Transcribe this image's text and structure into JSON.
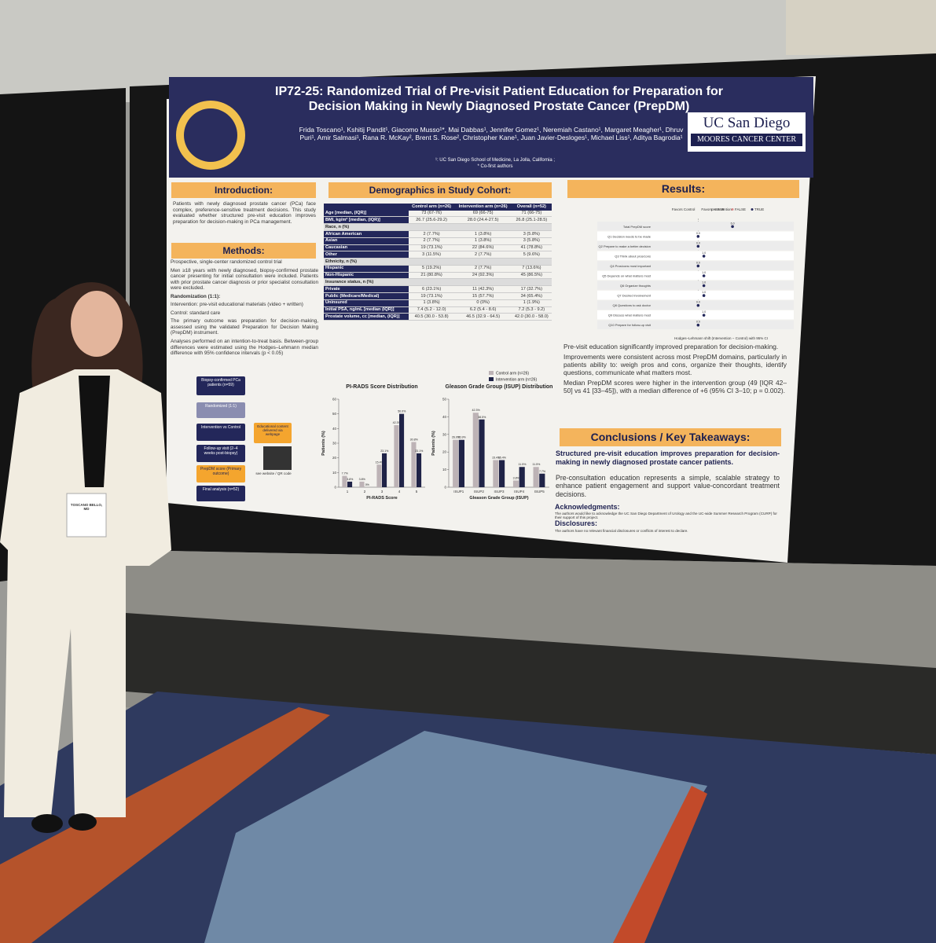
{
  "poster": {
    "title": "IP72-25: Randomized Trial of Pre-visit Patient Education for Preparation for Decision Making in Newly Diagnosed Prostate Cancer (PrepDM)",
    "authors": "Frida Toscano¹, Kshitij Pandit¹, Giacomo Musso¹*, Mai Dabbas¹, Jennifer Gomez¹, Neremiah Castano¹, Margaret Meagher¹, Dhruv Puri¹, Amir Salmasi¹, Rana R. McKay², Brent S. Rose², Christopher Kane¹, Juan Javier-Desloges¹, Michael Liss¹, Aditya Bagrodia¹",
    "affiliation": "¹: UC San Diego School of Medicine, La Jolla, California ;",
    "co_first": "* Co-first authors",
    "logo": {
      "name": "UC San Diego",
      "unit": "MOORES CANCER CENTER"
    },
    "introduction": {
      "heading": "Introduction:",
      "text": "Patients with newly diagnosed prostate cancer (PCa) face complex, preference-sensitive treatment decisions. This study evaluated whether structured pre-visit education improves preparation for decision-making in PCa management."
    },
    "methods": {
      "heading": "Methods:",
      "design": "Prospective, single-center randomized control trial",
      "eligibility": "Men ≥18 years with newly diagnosed, biopsy-confirmed prostate cancer presenting for initial consultation were included. Patients with prior prostate cancer diagnosis or prior specialist consultation were excluded.",
      "randomization": "Randomization (1:1):",
      "arms": [
        "Intervention: pre-visit educational materials (video + written)",
        "Control: standard care"
      ],
      "outcome": "The primary outcome was preparation for decision-making, assessed using the validated Preparation for Decision Making (PrepDM) instrument.",
      "analysis": "Analyses performed on an intention-to-treat basis. Between-group differences were estimated using the Hodges–Lehmann median difference with 95% confidence intervals (p < 0.05)"
    },
    "flow": {
      "steps": [
        "Biopsy-confirmed PCa patients (n=59)",
        "Randomized (1:1)",
        "Intervention vs Control",
        "Follow-up visit (2–4 weeks post-biopsy)",
        "PrepDM score (Primary outcome)",
        "Final analysis (n=52)"
      ],
      "qr_caption": "Educational content delivered via webpage",
      "qr_link": "see website / QR code"
    },
    "demographics": {
      "heading": "Demographics in Study Cohort:",
      "columns": [
        "Control arm (n=26)",
        "Intervention arm (n=26)",
        "Overall (n=52)"
      ],
      "rows": [
        [
          "Age [median, (IQR)]",
          "73 (67-76)",
          "69 (66-75)",
          "71 (66-75)"
        ],
        [
          "BMI, kg/m² [median, (IQR)]",
          "26.7 (25.6-29.2)",
          "28.0 (24.4-27.5)",
          "26.8 (25.1-28.5)"
        ],
        [
          "Race, n (%)"
        ],
        [
          "African American",
          "2 (7.7%)",
          "1 (3.8%)",
          "3 (5.8%)"
        ],
        [
          "Asian",
          "2 (7.7%)",
          "1 (3.8%)",
          "3 (5.8%)"
        ],
        [
          "Caucasian",
          "19 (73.1%)",
          "22 (84.6%)",
          "41 (78.8%)"
        ],
        [
          "Other",
          "3 (11.5%)",
          "2 (7.7%)",
          "5 (9.6%)"
        ],
        [
          "Ethnicity, n (%)"
        ],
        [
          "Hispanic",
          "5 (19.2%)",
          "2 (7.7%)",
          "7 (13.6%)"
        ],
        [
          "Non-Hispanic",
          "21 (80.8%)",
          "24 (92.3%)",
          "45 (86.5%)"
        ],
        [
          "Insurance status, n (%)"
        ],
        [
          "Private",
          "6 (23.1%)",
          "11 (42.3%)",
          "17 (32.7%)"
        ],
        [
          "Public (Medicare/Medical)",
          "19 (73.1%)",
          "15 (57.7%)",
          "34 (65.4%)"
        ],
        [
          "Uninsured",
          "1 (3.8%)",
          "0 (0%)",
          "1 (1.9%)"
        ],
        [
          "Initial PSA, ng/mL [median (IQR)]",
          "7.4 (5.2 - 12.0)",
          "6.2 (5.4 - 8.6)",
          "7.2 (5.3 - 9.2)"
        ],
        [
          "Prostate volume, cc [median, (IQR)]",
          "40.5 (30.0 - 53.8)",
          "46.5 (32.9 - 64.5)",
          "42.0 (30.0 - 58.0)"
        ]
      ]
    },
    "results": {
      "heading": "Results:",
      "text": [
        "Pre-visit education significantly improved preparation for decision-making.",
        "Improvements were consistent across most PrepDM domains, particularly in patients ability to: weigh pros and cons, organize their thoughts, identify questions, communicate what matters most.",
        "Median PrepDM scores were higher in the intervention group (49 [IQR 42–50] vs 41 [33–45]), with a median difference of +6 (95% CI 3–10; p = 0.002)."
      ]
    },
    "conclusions": {
      "heading": "Conclusions / Key Takeaways:",
      "main": "Structured pre-visit education improves preparation for decision-making in newly diagnosed prostate cancer patients.",
      "text": "Pre-consultation education represents a simple, scalable strategy to enhance patient engagement and support value-concordant treatment decisions."
    },
    "acknowledgments": {
      "heading": "Acknowledgments:",
      "text": "The authors would like to acknowledge the UC San Diego Department of Urology and the UC-wide Summer Research Program (CURP) for their support of this project."
    },
    "disclosures": {
      "heading": "Disclosures:",
      "text": "The authors have no relevant financial disclosures or conflicts of interest to declare."
    },
    "badge": "TOSCANO BELLO, MD"
  },
  "chart_data": [
    {
      "type": "bar",
      "title": "PI-RADS Score Distribution",
      "x_label": "PI-RADS Score",
      "y_label": "Patients (%)",
      "categories": [
        "1",
        "2",
        "3",
        "4",
        "5"
      ],
      "series": [
        {
          "name": "Control arm (n=26)",
          "color": "#bdb3b6",
          "values": [
            7.7,
            3.8,
            15.4,
            42.3,
            30.8
          ],
          "value_labels": [
            "7.7%",
            "3.8%",
            "15.4%",
            "42.3%",
            "30.8%"
          ]
        },
        {
          "name": "Intervention arm (n=26)",
          "color": "#1f2347",
          "values": [
            3.8,
            0,
            23.1,
            50.0,
            23.1
          ],
          "value_labels": [
            "3.8%",
            "0%",
            "23.1%",
            "50.0%",
            "23.1%"
          ]
        }
      ],
      "ylim": [
        0,
        60
      ],
      "yticks": [
        0,
        10,
        20,
        30,
        40,
        50,
        60
      ]
    },
    {
      "type": "bar",
      "title": "Gleason Grade Group (ISUP) Distribution",
      "x_label": "Gleason Grade Group (ISUP)",
      "y_label": "Patients (%)",
      "categories": [
        "ISUP1",
        "ISUP2",
        "ISUP3",
        "ISUP4",
        "ISUP5"
      ],
      "series": [
        {
          "color": "#bdb3b6",
          "values": [
            26.9,
            42.3,
            15.4,
            3.8,
            11.5
          ],
          "value_labels": [
            "26.9%",
            "42.3%",
            "15.4%",
            "3.8%",
            "11.5%"
          ]
        },
        {
          "color": "#1f2347",
          "values": [
            26.9,
            38.5,
            15.4,
            11.5,
            7.7
          ],
          "value_labels": [
            "26.9%",
            "38.5%",
            "15.4%",
            "11.5%",
            "7.7%"
          ]
        }
      ],
      "ylim": [
        0,
        50
      ],
      "yticks": [
        0,
        10,
        20,
        30,
        40,
        50
      ]
    },
    {
      "type": "forest",
      "left_label": "Favors Control",
      "right_label": "Favors Intervention",
      "legend_title": "p < 0.05",
      "legend": [
        "FALSE",
        "TRUE"
      ],
      "x_label": "Hodges–Lehmann shift (Intervention − Control) with 95% CI",
      "categories": [
        "Total PrepDM score",
        "Q1 Decision needs to be made",
        "Q2 Prepare to make a better decision",
        "Q3 Think about pros/cons",
        "Q4 Pros/cons most important",
        "Q5 Depends on what matters most",
        "Q6 Organize thoughts",
        "Q7 Desired involvement",
        "Q8 Questions to ask doctor",
        "Q9 Discuss what matters most",
        "Q10 Prepare for follow-up visit"
      ],
      "values": [
        6,
        0,
        0,
        1,
        0,
        1,
        1,
        1,
        0,
        1,
        0
      ],
      "value_labels": [
        "6.0",
        "0.0",
        "0.0",
        "1.0",
        "0.0",
        "1.0",
        "1.0",
        "1.0",
        "0.0",
        "1.0",
        "0.0"
      ],
      "color": "#23275a",
      "xlim": [
        -8,
        16
      ]
    }
  ]
}
